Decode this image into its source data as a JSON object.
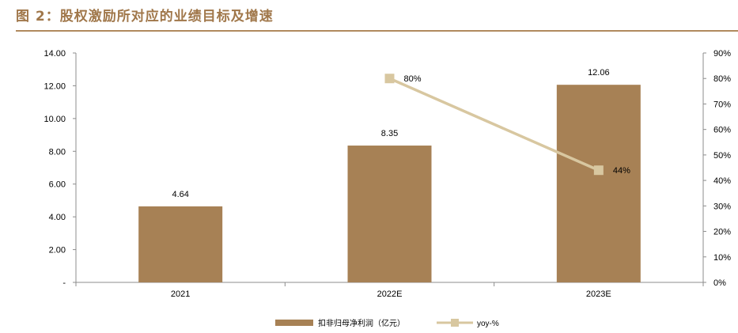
{
  "figure_title": "图 2：股权激励所对应的业绩目标及增速",
  "colors": {
    "bar": "#A78155",
    "line": "#D8C7A0",
    "title": "#A0774A",
    "rule": "#B08A5E",
    "axis": "#8C8C8C"
  },
  "chart_data": {
    "type": "bar",
    "categories": [
      "2021",
      "2022E",
      "2023E"
    ],
    "series": [
      {
        "name": "扣非归母净利润（亿元）",
        "type": "bar",
        "axis": "left",
        "values": [
          4.64,
          8.35,
          12.06
        ],
        "labels": [
          "4.64",
          "8.35",
          "12.06"
        ]
      },
      {
        "name": "yoy-%",
        "type": "line",
        "axis": "right",
        "values": [
          null,
          80,
          44
        ],
        "labels": [
          "",
          "80%",
          "44%"
        ]
      }
    ],
    "y_left": {
      "min": 0,
      "max": 14,
      "step": 2,
      "tick_labels": [
        "-",
        "2.00",
        "4.00",
        "6.00",
        "8.00",
        "10.00",
        "12.00",
        "14.00"
      ]
    },
    "y_right": {
      "min": 0,
      "max": 90,
      "step": 10,
      "tick_labels": [
        "0%",
        "10%",
        "20%",
        "30%",
        "40%",
        "50%",
        "60%",
        "70%",
        "80%",
        "90%"
      ]
    },
    "grid": false,
    "legend_position": "bottom"
  }
}
